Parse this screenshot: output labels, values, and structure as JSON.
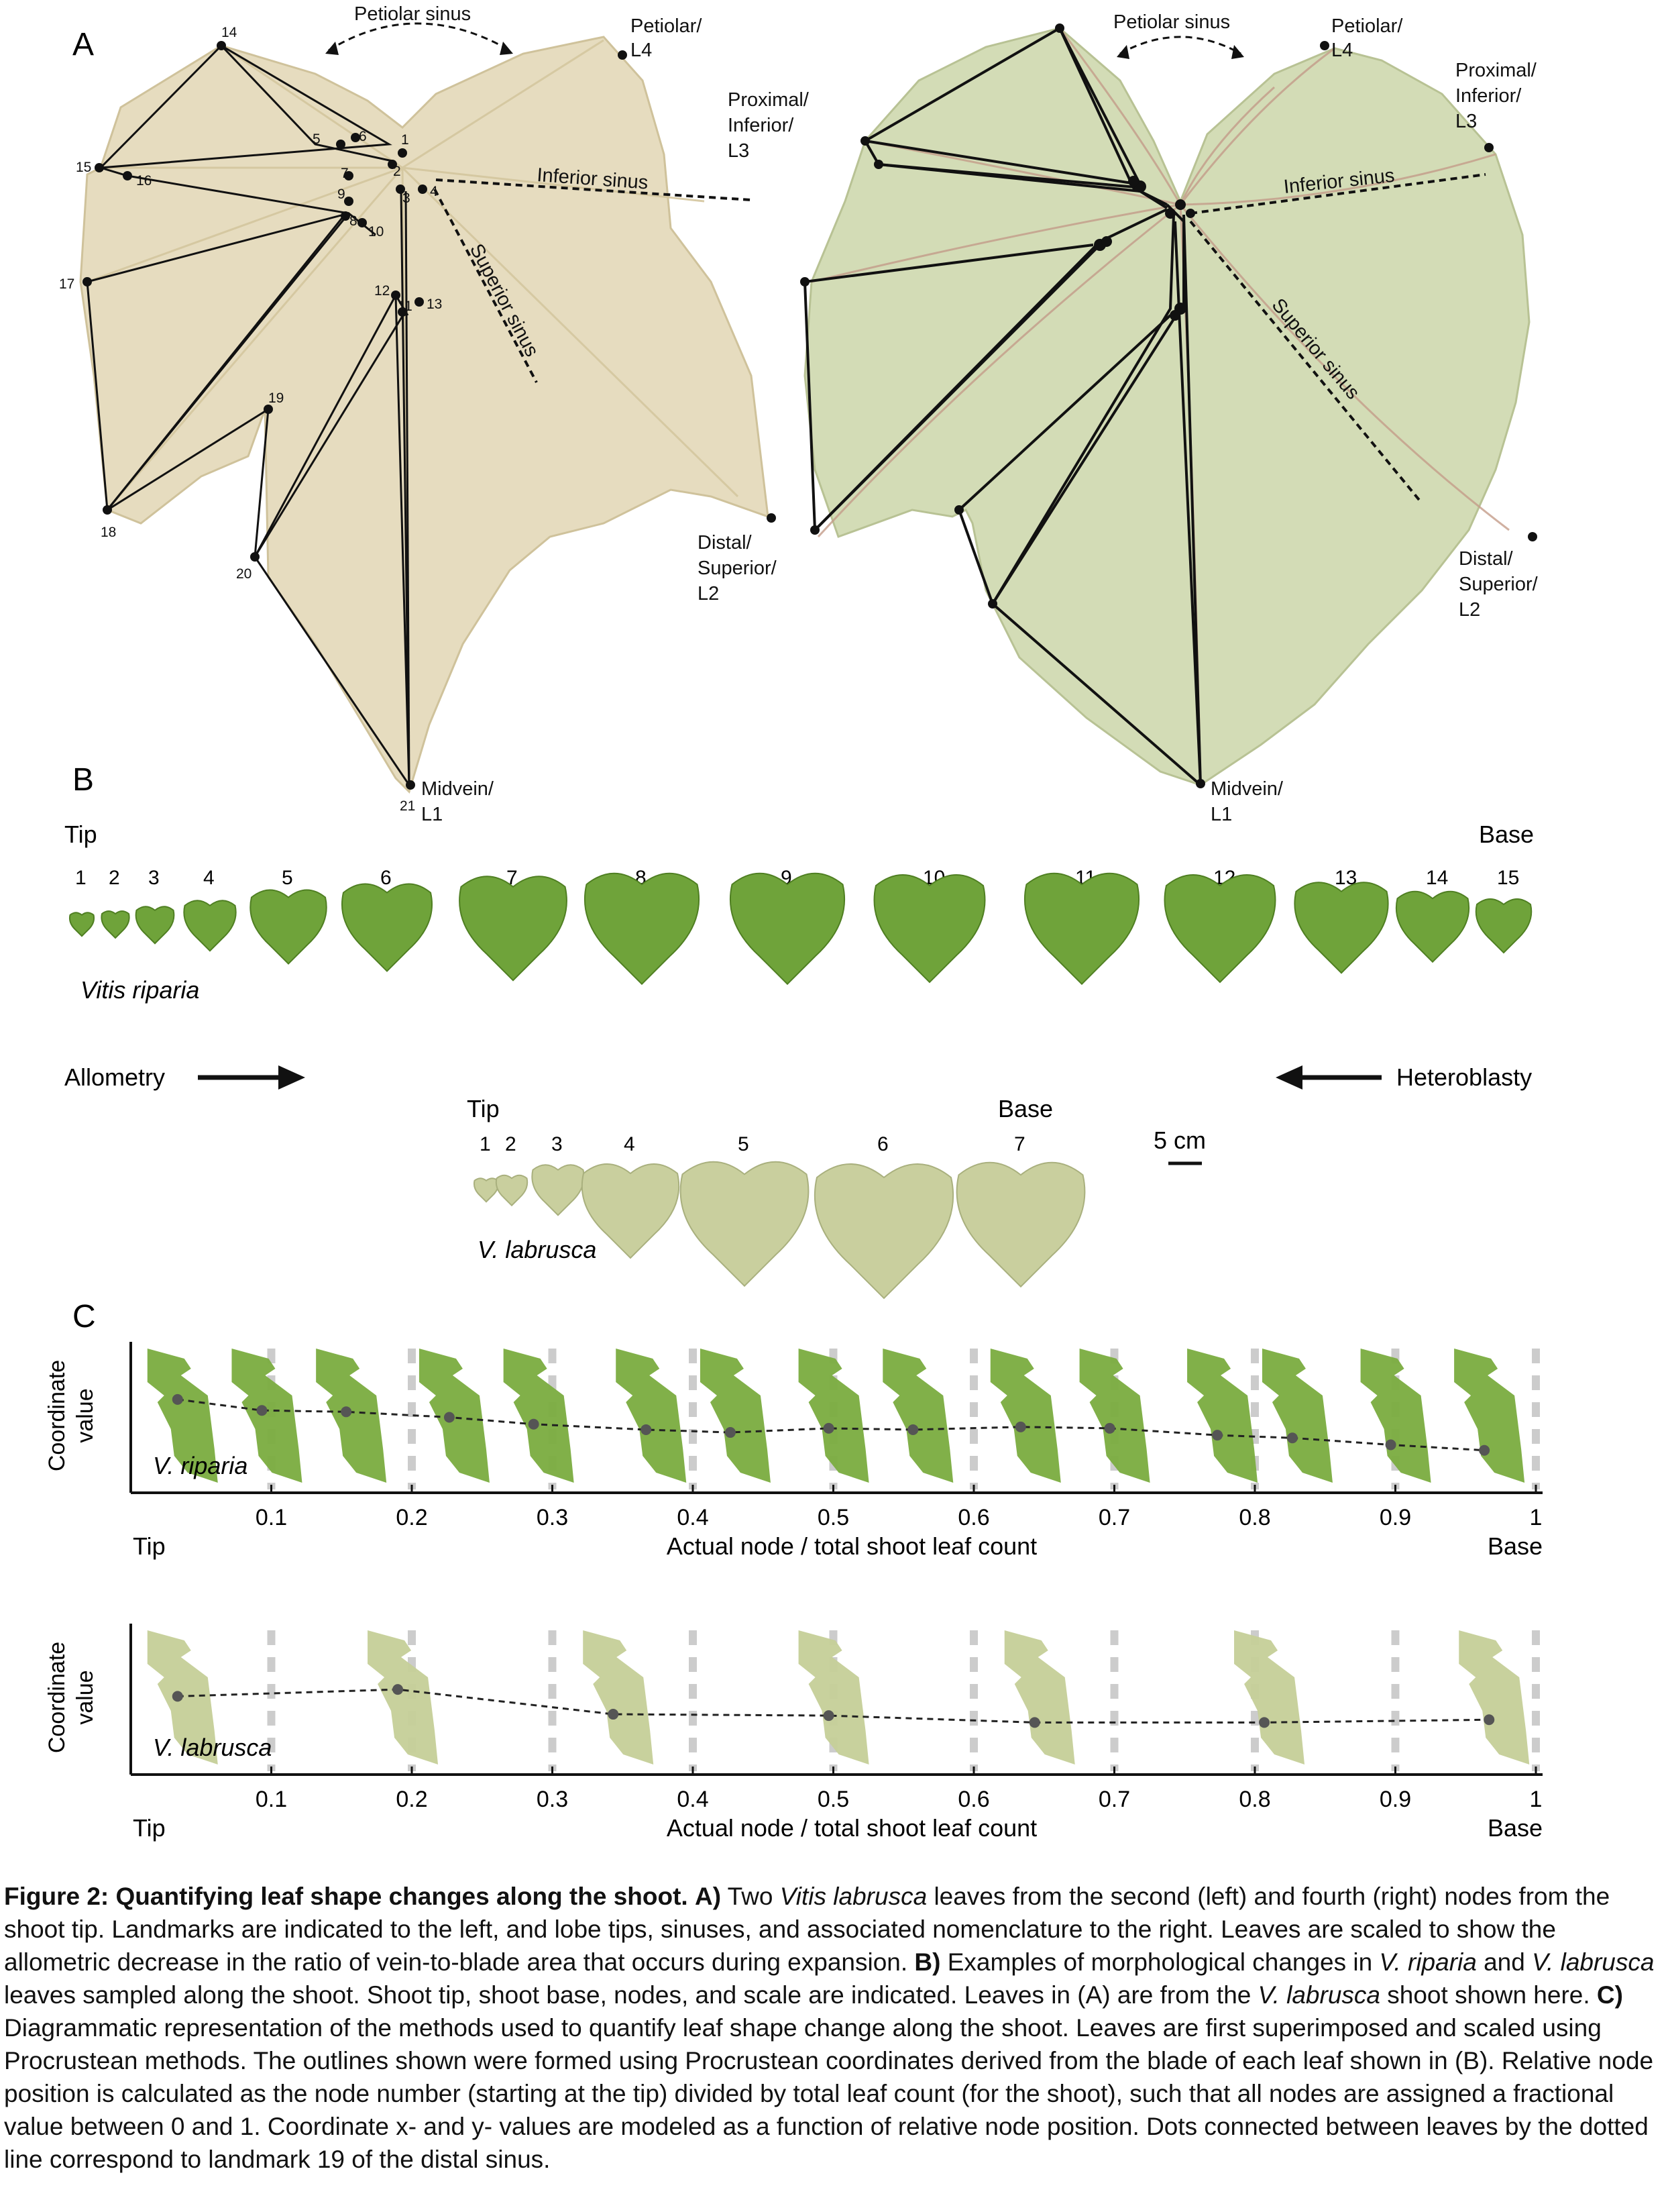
{
  "panel_a": {
    "panel_letter": "A",
    "landmark_numbers": [
      "1",
      "2",
      "3",
      "4",
      "5",
      "6",
      "7",
      "8",
      "9",
      "10",
      "11",
      "12",
      "13",
      "14",
      "15",
      "16",
      "17",
      "18",
      "19",
      "20",
      "21"
    ],
    "left_labels": {
      "petiolar_sinus": "Petiolar sinus",
      "petiolar_l4_line1": "Petiolar/",
      "petiolar_l4_line2": "L4",
      "proximal_line1": "Proximal/",
      "proximal_line2": "Inferior/",
      "proximal_line3": "L3",
      "inferior_sinus": "Inferior sinus",
      "superior_sinus": "Superior sinus",
      "distal_line1": "Distal/",
      "distal_line2": "Superior/",
      "distal_line3": "L2",
      "midvein_line1": "Midvein/",
      "midvein_line2": "L1"
    },
    "right_labels": {
      "petiolar_sinus": "Petiolar sinus",
      "petiolar_l4_line1": "Petiolar/",
      "petiolar_l4_line2": "L4",
      "proximal_line1": "Proximal/",
      "proximal_line2": "Inferior/",
      "proximal_line3": "L3",
      "inferior_sinus": "Inferior sinus",
      "superior_sinus": "Superior sinus",
      "distal_line1": "Distal/",
      "distal_line2": "Superior/",
      "distal_line3": "L2",
      "midvein_line1": "Midvein/",
      "midvein_line2": "L1"
    },
    "colors": {
      "left_leaf": "#e6dcbf",
      "right_leaf": "#d3dcb6"
    }
  },
  "panel_b": {
    "panel_letter": "B",
    "riparia": {
      "tip_label": "Tip",
      "base_label": "Base",
      "nodes": [
        "1",
        "2",
        "3",
        "4",
        "5",
        "6",
        "7",
        "8",
        "9",
        "10",
        "11",
        "12",
        "13",
        "14",
        "15"
      ],
      "species": "Vitis riparia"
    },
    "labrusca": {
      "tip_label": "Tip",
      "base_label": "Base",
      "nodes": [
        "1",
        "2",
        "3",
        "4",
        "5",
        "6",
        "7"
      ],
      "species": "V. labrusca"
    },
    "allometry_label": "Allometry",
    "heteroblasty_label": "Heteroblasty",
    "scale_label": "5 cm",
    "colors": {
      "riparia": "#6fa33a",
      "labrusca": "#c9cf9e"
    }
  },
  "panel_c": {
    "panel_letter": "C",
    "chart_data": [
      {
        "type": "scatter",
        "species": "V. riparia",
        "ylabel_line1": "Coordinate",
        "ylabel_line2": "value",
        "xlabel": "Actual node / total shoot leaf count",
        "tip_label": "Tip",
        "base_label": "Base",
        "xticks": [
          "0.1",
          "0.2",
          "0.3",
          "0.4",
          "0.5",
          "0.6",
          "0.7",
          "0.8",
          "0.9",
          "1"
        ],
        "xlim": [
          0,
          1
        ],
        "x": [
          0.0333,
          0.0933,
          0.1533,
          0.2267,
          0.2867,
          0.3667,
          0.4267,
          0.4967,
          0.5567,
          0.6333,
          0.6967,
          0.7733,
          0.8267,
          0.8967,
          0.9633
        ],
        "y": [
          0.63,
          0.55,
          0.54,
          0.5,
          0.45,
          0.41,
          0.39,
          0.42,
          0.41,
          0.43,
          0.42,
          0.37,
          0.35,
          0.3,
          0.26
        ],
        "color": "#7aac3f"
      },
      {
        "type": "scatter",
        "species": "V. labrusca",
        "ylabel_line1": "Coordinate",
        "ylabel_line2": "value",
        "xlabel": "Actual node / total shoot leaf count",
        "tip_label": "Tip",
        "base_label": "Base",
        "xticks": [
          "0.1",
          "0.2",
          "0.3",
          "0.4",
          "0.5",
          "0.6",
          "0.7",
          "0.8",
          "0.9",
          "1"
        ],
        "xlim": [
          0,
          1
        ],
        "x": [
          0.0333,
          0.19,
          0.3433,
          0.4967,
          0.6433,
          0.8067,
          0.9667
        ],
        "y": [
          0.52,
          0.57,
          0.39,
          0.38,
          0.33,
          0.33,
          0.35
        ],
        "color": "#c5cf98"
      }
    ]
  },
  "caption": {
    "figure_label": "Figure 2: Quantifying leaf shape changes along the shoot.",
    "a_label": "A)",
    "a_text_1": "Two",
    "a_species_1": "Vitis labrusca",
    "a_text_2": "leaves from the second (left) and fourth (right) nodes from the shoot tip. Landmarks are indicated to the left, and lobe tips, sinuses, and associated nomenclature to the right. Leaves are scaled to show the allometric decrease in the ratio of vein-to-blade area that occurs during expansion.",
    "b_label": "B)",
    "b_text_1": "Examples of morphological changes in",
    "b_species_1": "V. riparia",
    "b_text_2": "and",
    "b_species_2": "V. labrusca",
    "b_text_3": "leaves sampled along the shoot. Shoot tip, shoot base, nodes, and scale are indicated. Leaves in (A) are from the",
    "b_species_3": "V. labrusca",
    "b_text_4": "shoot shown here.",
    "c_label": "C)",
    "c_text": "Diagrammatic representation of the methods used to quantify leaf shape change along the shoot. Leaves are first superimposed and scaled using Procrustean methods. The outlines shown were formed using Procrustean coordinates derived from the blade of each leaf shown in (B). Relative node position is calculated as the node number (starting at the tip) divided by total leaf count (for the shoot), such that all nodes are assigned a fractional value between 0 and 1. Coordinate x- and y- values are modeled as a function of relative node position. Dots connected between leaves by the dotted line correspond to landmark 19 of the distal sinus."
  }
}
